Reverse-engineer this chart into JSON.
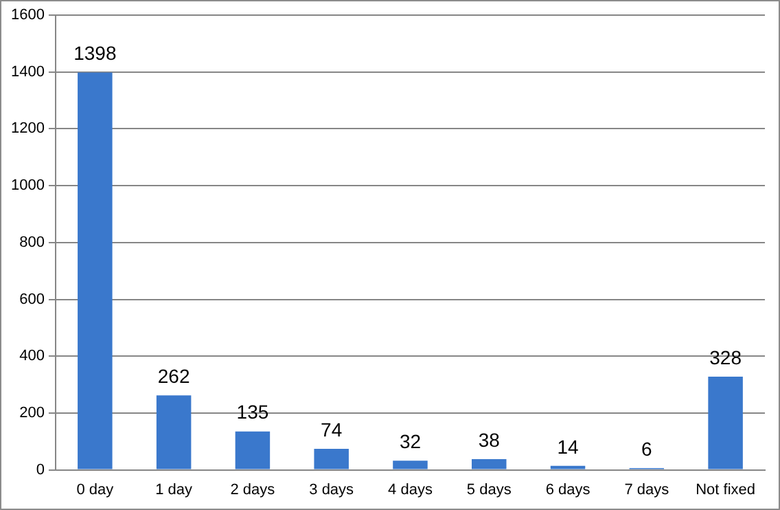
{
  "chart_data": {
    "type": "bar",
    "categories": [
      "0 day",
      "1 day",
      "2 days",
      "3 days",
      "4 days",
      "5 days",
      "6 days",
      "7 days",
      "Not fixed"
    ],
    "values": [
      1398,
      262,
      135,
      74,
      32,
      38,
      14,
      6,
      328
    ],
    "color": "#3a78cc",
    "ylim": [
      0,
      1600
    ],
    "yticks": [
      0,
      200,
      400,
      600,
      800,
      1000,
      1200,
      1400,
      1600
    ],
    "grid": "y",
    "data_labels": true,
    "legend": false
  }
}
